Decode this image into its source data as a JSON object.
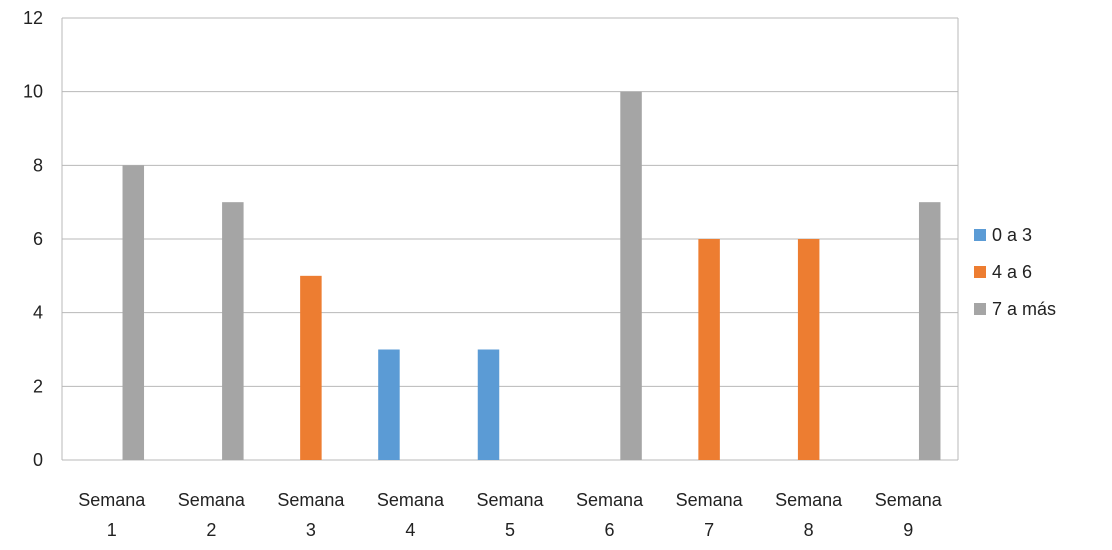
{
  "chart_data": {
    "type": "bar",
    "categories": [
      [
        "Semana",
        "1"
      ],
      [
        "Semana",
        "2"
      ],
      [
        "Semana",
        "3"
      ],
      [
        "Semana",
        "4"
      ],
      [
        "Semana",
        "5"
      ],
      [
        "Semana",
        "6"
      ],
      [
        "Semana",
        "7"
      ],
      [
        "Semana",
        "8"
      ],
      [
        "Semana",
        "9"
      ]
    ],
    "series": [
      {
        "name": "0 a 3",
        "color": "#5b9bd5",
        "values": [
          null,
          null,
          null,
          3,
          3,
          null,
          null,
          null,
          null
        ]
      },
      {
        "name": "4 a 6",
        "color": "#ed7d31",
        "values": [
          null,
          null,
          5,
          null,
          null,
          null,
          6,
          6,
          null
        ]
      },
      {
        "name": "7 a más",
        "color": "#a5a5a5",
        "values": [
          8,
          7,
          null,
          null,
          null,
          10,
          null,
          null,
          7
        ]
      }
    ],
    "ylim": [
      0,
      12
    ],
    "yticks": [
      "0",
      "2",
      "4",
      "6",
      "8",
      "10",
      "12"
    ],
    "grid": true,
    "legend_position": "right",
    "title": "",
    "xlabel": "",
    "ylabel": ""
  }
}
